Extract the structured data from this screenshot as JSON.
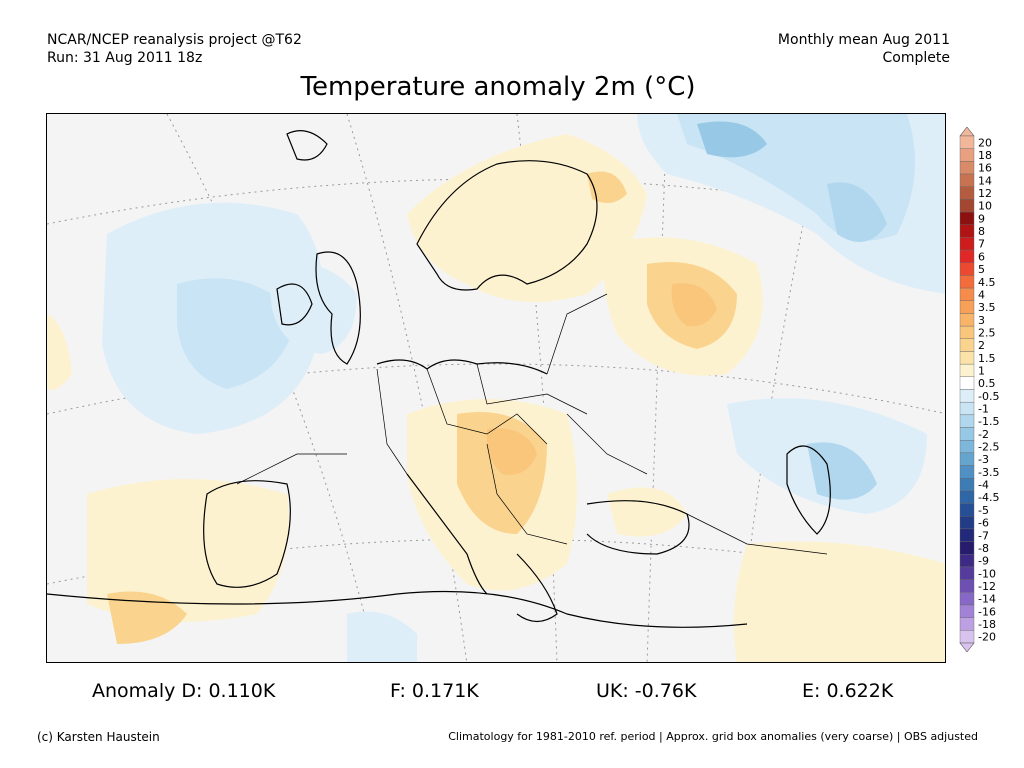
{
  "header": {
    "line1_left": "NCAR/NCEP reanalysis project @T62",
    "line2_left": "Run: 31 Aug 2011 18z",
    "line1_right": "Monthly mean Aug 2011",
    "line2_right": "Complete"
  },
  "title": "Temperature anomaly 2m (°C)",
  "colorbar": {
    "levels": [
      "20",
      "18",
      "16",
      "14",
      "12",
      "10",
      "9",
      "8",
      "7",
      "6",
      "5",
      "4.5",
      "4",
      "3.5",
      "3",
      "2.5",
      "2",
      "1.5",
      "1",
      "0.5",
      "-0.5",
      "-1",
      "-1.5",
      "-2",
      "-2.5",
      "-3",
      "-3.5",
      "-4",
      "-4.5",
      "-5",
      "-6",
      "-7",
      "-8",
      "-9",
      "-10",
      "-12",
      "-14",
      "-16",
      "-18",
      "-20"
    ],
    "colors": [
      "#f2b79b",
      "#e8a080",
      "#d98a68",
      "#c77352",
      "#b55c40",
      "#a34632",
      "#8c1010",
      "#b01414",
      "#cc1c1c",
      "#e02828",
      "#ec4a30",
      "#f26c3c",
      "#f58c4c",
      "#f7a058",
      "#f8b468",
      "#f9c67c",
      "#fad48f",
      "#fbe2a8",
      "#fdf2d0",
      "#ffffff",
      "#ddeef8",
      "#c9e4f4",
      "#b0d7ee",
      "#97c8e6",
      "#7eb7dc",
      "#66a4d0",
      "#5090c4",
      "#3e7cb6",
      "#2e66a6",
      "#264f96",
      "#223c86",
      "#22297a",
      "#261c6e",
      "#3d2a84",
      "#553c9c",
      "#6e50b2",
      "#8868c6",
      "#a282d6",
      "#bca0e2",
      "#d8c2ee"
    ]
  },
  "stats": {
    "d": "Anomaly D: 0.110K",
    "f": "F: 0.171K",
    "uk": "UK: -0.76K",
    "e": "E: 0.622K"
  },
  "footer": {
    "left": "(c) Karsten Haustein",
    "right": "Climatology for 1981-2010 ref. period | Approx. grid box anomalies (very coarse) | OBS adjusted"
  }
}
